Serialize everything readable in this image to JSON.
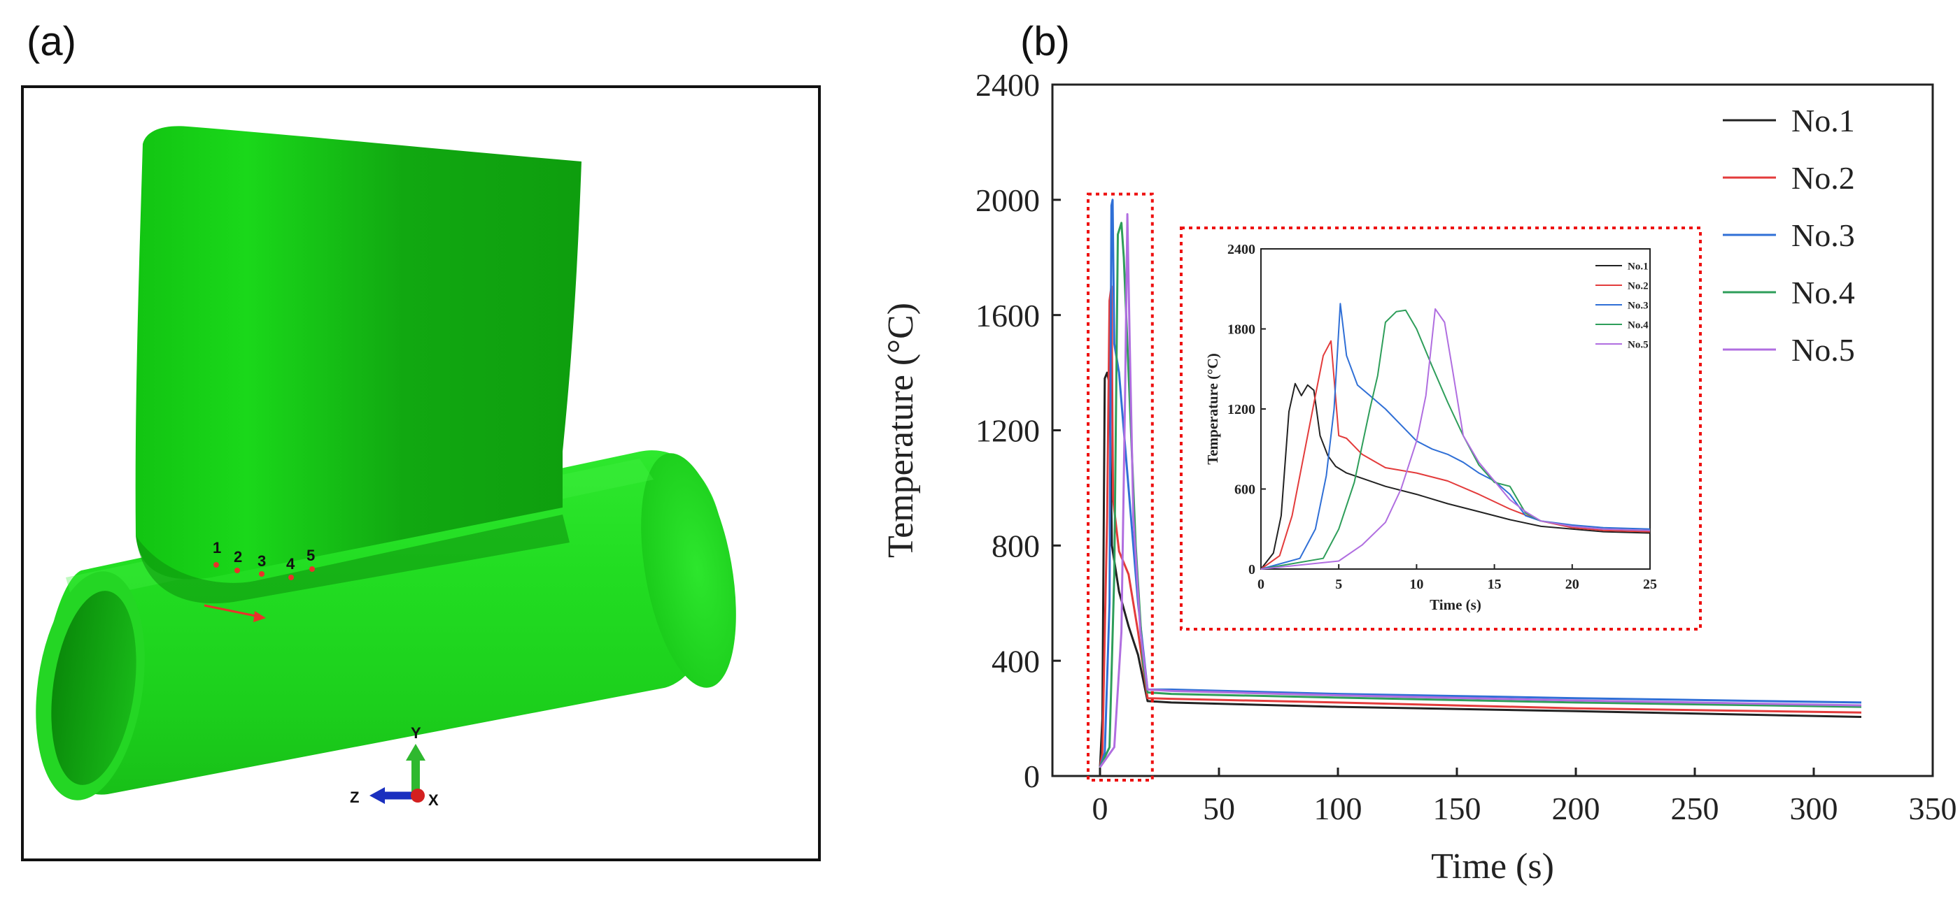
{
  "panels": {
    "a": {
      "label": "(a)",
      "points": [
        "1",
        "2",
        "3",
        "4",
        "5"
      ],
      "axes": {
        "y": "Y",
        "z": "Z",
        "x": "X"
      },
      "colors": {
        "body": "#22dd22",
        "marker": "#e8322a",
        "arrow": "#e8322a"
      }
    },
    "b": {
      "label": "(b)"
    }
  },
  "chart_data": [
    {
      "type": "line",
      "title": "",
      "xlabel": "Time (s)",
      "ylabel": "Temperature (°C)",
      "xlim": [
        -20,
        350
      ],
      "ylim": [
        0,
        2400
      ],
      "xticks": [
        0,
        50,
        100,
        150,
        200,
        250,
        300,
        350
      ],
      "yticks": [
        0,
        400,
        800,
        1200,
        1600,
        2000,
        2400
      ],
      "legend_position": "top-right",
      "highlight_box": {
        "x": [
          -5,
          22
        ],
        "y": [
          0,
          2020
        ]
      },
      "series": [
        {
          "name": "No.1",
          "color": "#222222",
          "points": [
            [
              0,
              30
            ],
            [
              1,
              200
            ],
            [
              2,
              1380
            ],
            [
              3,
              1400
            ],
            [
              4,
              1360
            ],
            [
              5,
              800
            ],
            [
              8,
              640
            ],
            [
              12,
              520
            ],
            [
              16,
              420
            ],
            [
              20,
              260
            ],
            [
              30,
              255
            ],
            [
              100,
              240
            ],
            [
              200,
              225
            ],
            [
              320,
              205
            ]
          ]
        },
        {
          "name": "No.2",
          "color": "#e33b3b",
          "points": [
            [
              0,
              30
            ],
            [
              1,
              80
            ],
            [
              3,
              900
            ],
            [
              4,
              1650
            ],
            [
              4.8,
              1700
            ],
            [
              5.5,
              960
            ],
            [
              8,
              780
            ],
            [
              12,
              700
            ],
            [
              16,
              500
            ],
            [
              20,
              270
            ],
            [
              30,
              268
            ],
            [
              100,
              255
            ],
            [
              200,
              235
            ],
            [
              320,
              220
            ]
          ]
        },
        {
          "name": "No.3",
          "color": "#2f6fd6",
          "points": [
            [
              0,
              30
            ],
            [
              2,
              80
            ],
            [
              4,
              600
            ],
            [
              4.8,
              1980
            ],
            [
              5.3,
              2000
            ],
            [
              6,
              1500
            ],
            [
              8,
              1400
            ],
            [
              12,
              1000
            ],
            [
              16,
              600
            ],
            [
              20,
              300
            ],
            [
              30,
              300
            ],
            [
              100,
              285
            ],
            [
              200,
              270
            ],
            [
              320,
              255
            ]
          ]
        },
        {
          "name": "No.4",
          "color": "#2e9e5a",
          "points": [
            [
              0,
              30
            ],
            [
              4,
              100
            ],
            [
              6,
              700
            ],
            [
              7.5,
              1880
            ],
            [
              9,
              1920
            ],
            [
              10,
              1800
            ],
            [
              12,
              1400
            ],
            [
              15,
              800
            ],
            [
              18,
              400
            ],
            [
              20,
              290
            ],
            [
              30,
              285
            ],
            [
              100,
              272
            ],
            [
              200,
              255
            ],
            [
              320,
              240
            ]
          ]
        },
        {
          "name": "No.5",
          "color": "#b06ee0",
          "points": [
            [
              0,
              30
            ],
            [
              6,
              100
            ],
            [
              9,
              500
            ],
            [
              10.5,
              1300
            ],
            [
              11.5,
              1950
            ],
            [
              12.5,
              1500
            ],
            [
              14,
              900
            ],
            [
              17,
              500
            ],
            [
              20,
              300
            ],
            [
              30,
              295
            ],
            [
              100,
              280
            ],
            [
              200,
              262
            ],
            [
              320,
              245
            ]
          ]
        }
      ]
    },
    {
      "type": "line",
      "title": "",
      "xlabel": "Time (s)",
      "ylabel": "Temperature (°C)",
      "xlim": [
        0,
        25
      ],
      "ylim": [
        0,
        2400
      ],
      "xticks": [
        0,
        5,
        10,
        15,
        20,
        25
      ],
      "yticks": [
        0,
        600,
        1200,
        1800,
        2400
      ],
      "legend_position": "top-right",
      "series": [
        {
          "name": "No.1",
          "color": "#222222",
          "points": [
            [
              0,
              0
            ],
            [
              0.8,
              120
            ],
            [
              1.3,
              400
            ],
            [
              1.8,
              1180
            ],
            [
              2.2,
              1390
            ],
            [
              2.6,
              1300
            ],
            [
              3.0,
              1380
            ],
            [
              3.4,
              1340
            ],
            [
              3.8,
              1000
            ],
            [
              4.3,
              850
            ],
            [
              4.8,
              770
            ],
            [
              5.5,
              720
            ],
            [
              6.5,
              680
            ],
            [
              8,
              620
            ],
            [
              10,
              560
            ],
            [
              12,
              490
            ],
            [
              14,
              430
            ],
            [
              16,
              370
            ],
            [
              18,
              320
            ],
            [
              20,
              300
            ],
            [
              22,
              280
            ],
            [
              25,
              270
            ]
          ]
        },
        {
          "name": "No.2",
          "color": "#e33b3b",
          "points": [
            [
              0,
              0
            ],
            [
              1.2,
              100
            ],
            [
              2,
              400
            ],
            [
              3,
              1000
            ],
            [
              3.5,
              1300
            ],
            [
              4,
              1600
            ],
            [
              4.5,
              1710
            ],
            [
              5,
              1000
            ],
            [
              5.5,
              980
            ],
            [
              6.5,
              860
            ],
            [
              8,
              760
            ],
            [
              10,
              720
            ],
            [
              12,
              660
            ],
            [
              14,
              560
            ],
            [
              16,
              450
            ],
            [
              18,
              360
            ],
            [
              20,
              310
            ],
            [
              22,
              290
            ],
            [
              25,
              280
            ]
          ]
        },
        {
          "name": "No.3",
          "color": "#2f6fd6",
          "points": [
            [
              0,
              0
            ],
            [
              2.5,
              80
            ],
            [
              3.5,
              300
            ],
            [
              4.2,
              700
            ],
            [
              4.7,
              1200
            ],
            [
              5.1,
              1990
            ],
            [
              5.5,
              1600
            ],
            [
              6.2,
              1380
            ],
            [
              7,
              1300
            ],
            [
              8,
              1200
            ],
            [
              9,
              1080
            ],
            [
              10,
              960
            ],
            [
              11,
              900
            ],
            [
              12,
              860
            ],
            [
              13,
              800
            ],
            [
              14,
              720
            ],
            [
              15,
              660
            ],
            [
              16,
              560
            ],
            [
              17,
              400
            ],
            [
              18,
              360
            ],
            [
              20,
              330
            ],
            [
              22,
              310
            ],
            [
              25,
              300
            ]
          ]
        },
        {
          "name": "No.4",
          "color": "#2e9e5a",
          "points": [
            [
              0,
              0
            ],
            [
              4,
              80
            ],
            [
              5,
              300
            ],
            [
              6,
              650
            ],
            [
              7,
              1200
            ],
            [
              7.5,
              1450
            ],
            [
              8,
              1850
            ],
            [
              8.7,
              1930
            ],
            [
              9.3,
              1940
            ],
            [
              10,
              1800
            ],
            [
              11,
              1520
            ],
            [
              12,
              1250
            ],
            [
              13,
              1000
            ],
            [
              14,
              780
            ],
            [
              15,
              650
            ],
            [
              16,
              620
            ],
            [
              17,
              420
            ],
            [
              18,
              360
            ],
            [
              20,
              320
            ],
            [
              22,
              300
            ],
            [
              25,
              290
            ]
          ]
        },
        {
          "name": "No.5",
          "color": "#b06ee0",
          "points": [
            [
              0,
              0
            ],
            [
              5,
              60
            ],
            [
              6.5,
              180
            ],
            [
              8,
              350
            ],
            [
              9,
              600
            ],
            [
              10,
              960
            ],
            [
              10.6,
              1300
            ],
            [
              11.2,
              1950
            ],
            [
              11.8,
              1850
            ],
            [
              12.3,
              1500
            ],
            [
              13,
              1000
            ],
            [
              14,
              800
            ],
            [
              15,
              660
            ],
            [
              16,
              520
            ],
            [
              17,
              430
            ],
            [
              18,
              360
            ],
            [
              20,
              320
            ],
            [
              22,
              300
            ],
            [
              25,
              290
            ]
          ]
        }
      ]
    }
  ]
}
